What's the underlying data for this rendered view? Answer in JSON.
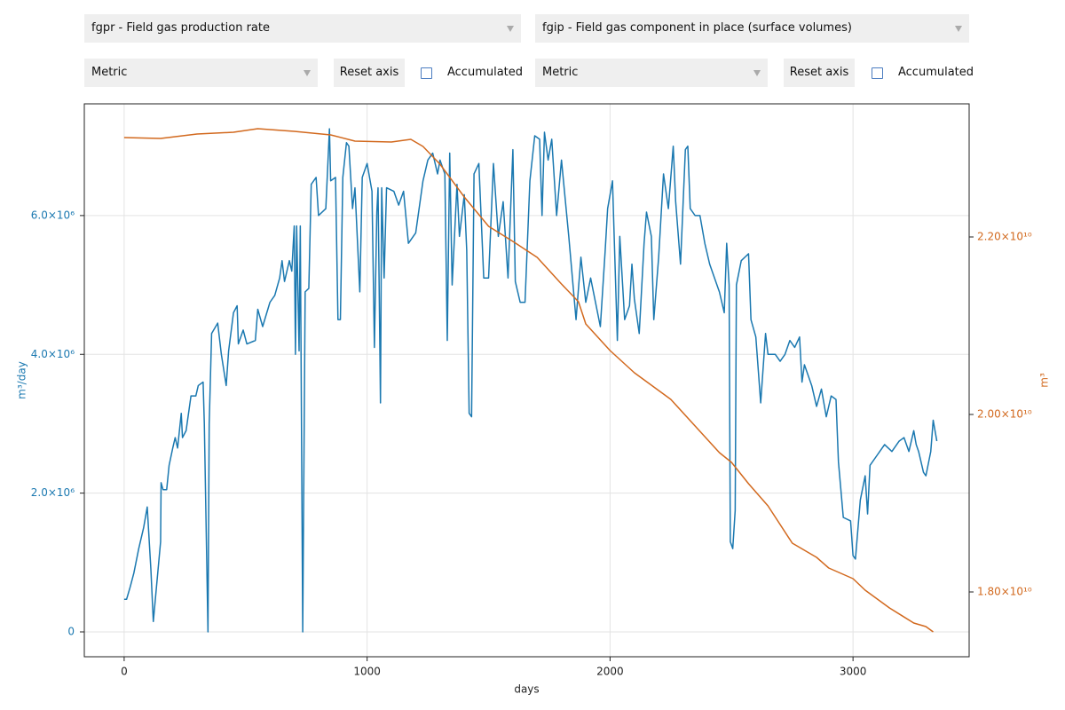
{
  "controls": {
    "left": {
      "vector": "fgpr - Field gas production rate",
      "unit_system": "Metric",
      "reset": "Reset axis",
      "accumulated": "Accumulated"
    },
    "right": {
      "vector": "fgip - Field gas component in place (surface volumes)",
      "unit_system": "Metric",
      "reset": "Reset axis",
      "accumulated": "Accumulated"
    }
  },
  "chart_data": {
    "type": "line",
    "x_label": "days",
    "y_label": "m³/day",
    "y2_label": "m³",
    "xlim": [
      -164,
      3478
    ],
    "xticks": [
      0,
      1000,
      2000,
      3000
    ],
    "ylim": [
      -358000,
      7610000
    ],
    "yticks": [
      0,
      {
        "value": 2000000,
        "label": "2.0×10⁶"
      },
      {
        "value": 4000000,
        "label": "4.0×10⁶"
      },
      {
        "value": 6000000,
        "label": "6.0×10⁶"
      }
    ],
    "y2lim": [
      17270000000,
      23500000000
    ],
    "y2ticks": [
      {
        "value": 18000000000,
        "label": "1.80×10¹⁰"
      },
      {
        "value": 20000000000,
        "label": "2.00×10¹⁰"
      },
      {
        "value": 22000000000,
        "label": "2.20×10¹⁰"
      }
    ],
    "grid": true,
    "series": [
      {
        "color": "#1a78b0",
        "x": [
          0,
          10,
          25,
          40,
          60,
          80,
          95,
          110,
          120,
          150,
          152,
          160,
          175,
          185,
          200,
          210,
          220,
          235,
          240,
          255,
          275,
          295,
          305,
          325,
          330,
          345,
          350,
          360,
          385,
          400,
          420,
          430,
          450,
          465,
          470,
          490,
          505,
          540,
          550,
          570,
          600,
          620,
          640,
          650,
          660,
          680,
          690,
          700,
          705,
          710,
          720,
          725,
          735,
          745,
          760,
          770,
          790,
          800,
          830,
          845,
          850,
          870,
          880,
          890,
          900,
          915,
          925,
          940,
          950,
          970,
          980,
          1000,
          1020,
          1030,
          1040,
          1045,
          1055,
          1060,
          1070,
          1080,
          1110,
          1130,
          1150,
          1170,
          1200,
          1230,
          1250,
          1270,
          1290,
          1300,
          1320,
          1330,
          1340,
          1350,
          1370,
          1380,
          1400,
          1410,
          1420,
          1430,
          1440,
          1460,
          1480,
          1500,
          1520,
          1540,
          1560,
          1580,
          1600,
          1610,
          1630,
          1650,
          1670,
          1690,
          1710,
          1720,
          1730,
          1745,
          1760,
          1780,
          1800,
          1830,
          1860,
          1880,
          1900,
          1920,
          1960,
          1980,
          1990,
          2010,
          2030,
          2040,
          2060,
          2080,
          2090,
          2100,
          2120,
          2140,
          2150,
          2170,
          2180,
          2200,
          2220,
          2240,
          2260,
          2270,
          2290,
          2310,
          2320,
          2330,
          2350,
          2370,
          2390,
          2410,
          2440,
          2450,
          2470,
          2480,
          2490,
          2495,
          2505,
          2515,
          2520,
          2540,
          2570,
          2580,
          2600,
          2620,
          2640,
          2650,
          2680,
          2700,
          2720,
          2740,
          2760,
          2780,
          2790,
          2800,
          2830,
          2850,
          2870,
          2890,
          2910,
          2930,
          2940,
          2960,
          2990,
          3000,
          3010,
          3030,
          3050,
          3060,
          3070,
          3100,
          3130,
          3160,
          3190,
          3210,
          3230,
          3250,
          3260,
          3270,
          3290,
          3300,
          3320,
          3330,
          3345
        ],
        "values": [
          470000,
          470000,
          650000,
          850000,
          1200000,
          1500000,
          1800000,
          900000,
          150000,
          1300000,
          2150000,
          2050000,
          2050000,
          2400000,
          2650000,
          2800000,
          2650000,
          3150000,
          2800000,
          2900000,
          3400000,
          3400000,
          3550000,
          3600000,
          3000000,
          0,
          3000000,
          4300000,
          4450000,
          4000000,
          3550000,
          4050000,
          4600000,
          4700000,
          4150000,
          4350000,
          4150000,
          4200000,
          4650000,
          4400000,
          4750000,
          4850000,
          5100000,
          5350000,
          5050000,
          5350000,
          5200000,
          5850000,
          4000000,
          5850000,
          4050000,
          5850000,
          0,
          4900000,
          4950000,
          6450000,
          6550000,
          6000000,
          6100000,
          7250000,
          6500000,
          6550000,
          4500000,
          4500000,
          6550000,
          7050000,
          7000000,
          6100000,
          6400000,
          4900000,
          6550000,
          6750000,
          6350000,
          4100000,
          6050000,
          6400000,
          3300000,
          6400000,
          5100000,
          6400000,
          6350000,
          6150000,
          6350000,
          5600000,
          5750000,
          6500000,
          6800000,
          6900000,
          6600000,
          6800000,
          6600000,
          4200000,
          6900000,
          5000000,
          6450000,
          5700000,
          6300000,
          5500000,
          3150000,
          3100000,
          6600000,
          6750000,
          5100000,
          5100000,
          6750000,
          5700000,
          6200000,
          5100000,
          6950000,
          5050000,
          4750000,
          4750000,
          6500000,
          7150000,
          7100000,
          6000000,
          7200000,
          6800000,
          7100000,
          6000000,
          6800000,
          5700000,
          4500000,
          5400000,
          4750000,
          5100000,
          4400000,
          5500000,
          6100000,
          6500000,
          4200000,
          5700000,
          4500000,
          4700000,
          5300000,
          4800000,
          4300000,
          5600000,
          6050000,
          5700000,
          4500000,
          5400000,
          6600000,
          6100000,
          7000000,
          6200000,
          5300000,
          6950000,
          7000000,
          6100000,
          6000000,
          6000000,
          5600000,
          5300000,
          5000000,
          4900000,
          4600000,
          5600000,
          5000000,
          1300000,
          1200000,
          1750000,
          5000000,
          5350000,
          5450000,
          4500000,
          4250000,
          3300000,
          4300000,
          4000000,
          4000000,
          3900000,
          4000000,
          4200000,
          4100000,
          4250000,
          3600000,
          3850000,
          3550000,
          3250000,
          3500000,
          3100000,
          3400000,
          3350000,
          2450000,
          1650000,
          1600000,
          1100000,
          1050000,
          1900000,
          2250000,
          1700000,
          2400000,
          2550000,
          2700000,
          2600000,
          2750000,
          2800000,
          2600000,
          2900000,
          2700000,
          2600000,
          2300000,
          2250000,
          2600000,
          3050000,
          2750000
        ]
      },
      {
        "color": "#d2691e",
        "axis": "y2",
        "x": [
          0,
          150,
          300,
          450,
          550,
          700,
          850,
          950,
          1100,
          1180,
          1230,
          1300,
          1400,
          1500,
          1600,
          1700,
          1800,
          1870,
          1900,
          2000,
          2100,
          2150,
          2250,
          2350,
          2450,
          2500,
          2570,
          2650,
          2750,
          2850,
          2900,
          3000,
          3050,
          3150,
          3250,
          3300,
          3330
        ],
        "values": [
          23120000000,
          23110000000,
          23160000000,
          23180000000,
          23220000000,
          23190000000,
          23150000000,
          23080000000,
          23070000000,
          23100000000,
          23020000000,
          22820000000,
          22450000000,
          22120000000,
          21950000000,
          21770000000,
          21470000000,
          21270000000,
          21020000000,
          20720000000,
          20470000000,
          20370000000,
          20170000000,
          19870000000,
          19570000000,
          19460000000,
          19220000000,
          18970000000,
          18550000000,
          18390000000,
          18270000000,
          18150000000,
          18020000000,
          17820000000,
          17650000000,
          17610000000,
          17550000000
        ]
      }
    ]
  }
}
